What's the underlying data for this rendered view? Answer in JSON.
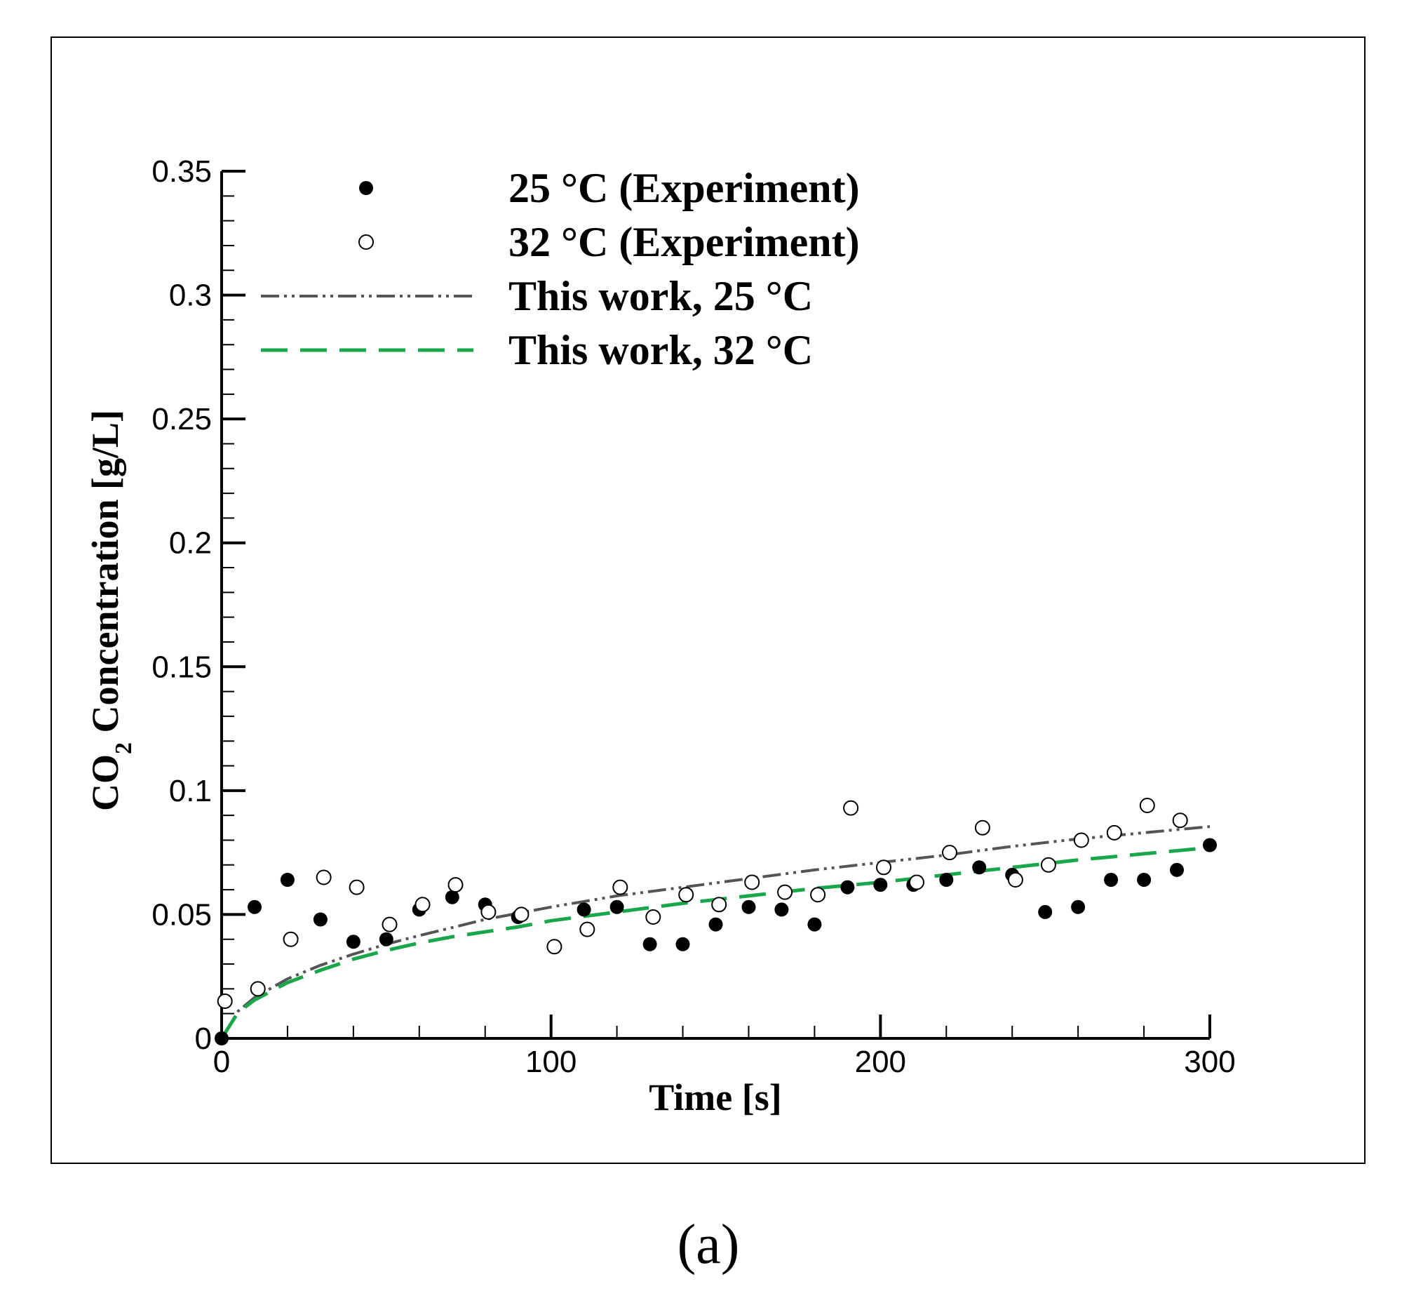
{
  "chart_data": {
    "type": "scatter",
    "title": "",
    "xlabel": "Time [s]",
    "ylabel": {
      "base": "CO",
      "subscript": "2",
      "rest": " Concentration [g/L]"
    },
    "xlim": [
      0,
      300
    ],
    "ylim": [
      0,
      0.35
    ],
    "x_ticks": [
      {
        "value": 0,
        "label": "0"
      },
      {
        "value": 100,
        "label": "100"
      },
      {
        "value": 200,
        "label": "200"
      },
      {
        "value": 300,
        "label": "300"
      }
    ],
    "y_ticks": [
      {
        "value": 0,
        "label": "0"
      },
      {
        "value": 0.05,
        "label": "0.05"
      },
      {
        "value": 0.1,
        "label": "0.1"
      },
      {
        "value": 0.15,
        "label": "0.15"
      },
      {
        "value": 0.2,
        "label": "0.2"
      },
      {
        "value": 0.25,
        "label": "0.25"
      },
      {
        "value": 0.3,
        "label": "0.3"
      },
      {
        "value": 0.35,
        "label": "0.35"
      }
    ],
    "x_minor_step": 20,
    "y_minor_step": 0.01,
    "grid": false,
    "legend_position": "top-left",
    "series": [
      {
        "name": "25 °C (Experiment)",
        "kind": "marker-filled",
        "color": "#000000",
        "points": [
          [
            0,
            0.0
          ],
          [
            10,
            0.053
          ],
          [
            20,
            0.064
          ],
          [
            30,
            0.048
          ],
          [
            40,
            0.039
          ],
          [
            50,
            0.04
          ],
          [
            60,
            0.052
          ],
          [
            70,
            0.057
          ],
          [
            80,
            0.054
          ],
          [
            90,
            0.049
          ],
          [
            110,
            0.052
          ],
          [
            120,
            0.053
          ],
          [
            130,
            0.038
          ],
          [
            140,
            0.038
          ],
          [
            150,
            0.046
          ],
          [
            160,
            0.053
          ],
          [
            170,
            0.052
          ],
          [
            180,
            0.046
          ],
          [
            190,
            0.061
          ],
          [
            200,
            0.062
          ],
          [
            210,
            0.062
          ],
          [
            220,
            0.064
          ],
          [
            230,
            0.069
          ],
          [
            240,
            0.066
          ],
          [
            250,
            0.051
          ],
          [
            260,
            0.053
          ],
          [
            270,
            0.064
          ],
          [
            280,
            0.064
          ],
          [
            290,
            0.068
          ],
          [
            300,
            0.078
          ]
        ]
      },
      {
        "name": "32 °C (Experiment)",
        "kind": "marker-open",
        "color": "#000000",
        "points": [
          [
            1,
            0.015
          ],
          [
            11,
            0.02
          ],
          [
            21,
            0.04
          ],
          [
            31,
            0.065
          ],
          [
            41,
            0.061
          ],
          [
            51,
            0.046
          ],
          [
            61,
            0.054
          ],
          [
            71,
            0.062
          ],
          [
            81,
            0.051
          ],
          [
            91,
            0.05
          ],
          [
            101,
            0.037
          ],
          [
            111,
            0.044
          ],
          [
            121,
            0.061
          ],
          [
            131,
            0.049
          ],
          [
            141,
            0.058
          ],
          [
            151,
            0.054
          ],
          [
            161,
            0.063
          ],
          [
            171,
            0.059
          ],
          [
            181,
            0.058
          ],
          [
            191,
            0.093
          ],
          [
            201,
            0.069
          ],
          [
            211,
            0.063
          ],
          [
            221,
            0.075
          ],
          [
            231,
            0.085
          ],
          [
            241,
            0.064
          ],
          [
            251,
            0.07
          ],
          [
            261,
            0.08
          ],
          [
            271,
            0.083
          ],
          [
            281,
            0.094
          ],
          [
            291,
            0.088
          ]
        ]
      },
      {
        "name": "This work, 25 °C",
        "kind": "line-dashdotdot",
        "color": "#555555",
        "points": [
          [
            0,
            0.0
          ],
          [
            5,
            0.011
          ],
          [
            10,
            0.0165
          ],
          [
            20,
            0.024
          ],
          [
            30,
            0.0295
          ],
          [
            40,
            0.034
          ],
          [
            50,
            0.038
          ],
          [
            60,
            0.0415
          ],
          [
            70,
            0.0447
          ],
          [
            80,
            0.048
          ],
          [
            90,
            0.0505
          ],
          [
            100,
            0.053
          ],
          [
            120,
            0.0575
          ],
          [
            140,
            0.061
          ],
          [
            160,
            0.0645
          ],
          [
            180,
            0.068
          ],
          [
            200,
            0.071
          ],
          [
            220,
            0.074
          ],
          [
            240,
            0.0775
          ],
          [
            260,
            0.0805
          ],
          [
            280,
            0.083
          ],
          [
            300,
            0.0855
          ]
        ]
      },
      {
        "name": "This work, 32 °C",
        "kind": "line-dashed",
        "color": "#1aa64a",
        "points": [
          [
            0,
            0.0
          ],
          [
            5,
            0.0105
          ],
          [
            10,
            0.0155
          ],
          [
            20,
            0.0225
          ],
          [
            30,
            0.0275
          ],
          [
            40,
            0.032
          ],
          [
            50,
            0.0355
          ],
          [
            60,
            0.0385
          ],
          [
            70,
            0.041
          ],
          [
            80,
            0.043
          ],
          [
            90,
            0.045
          ],
          [
            100,
            0.0475
          ],
          [
            120,
            0.051
          ],
          [
            140,
            0.0545
          ],
          [
            160,
            0.0575
          ],
          [
            180,
            0.0605
          ],
          [
            200,
            0.063
          ],
          [
            220,
            0.066
          ],
          [
            240,
            0.069
          ],
          [
            260,
            0.072
          ],
          [
            280,
            0.0745
          ],
          [
            300,
            0.077
          ]
        ]
      }
    ]
  },
  "caption": "(a)"
}
